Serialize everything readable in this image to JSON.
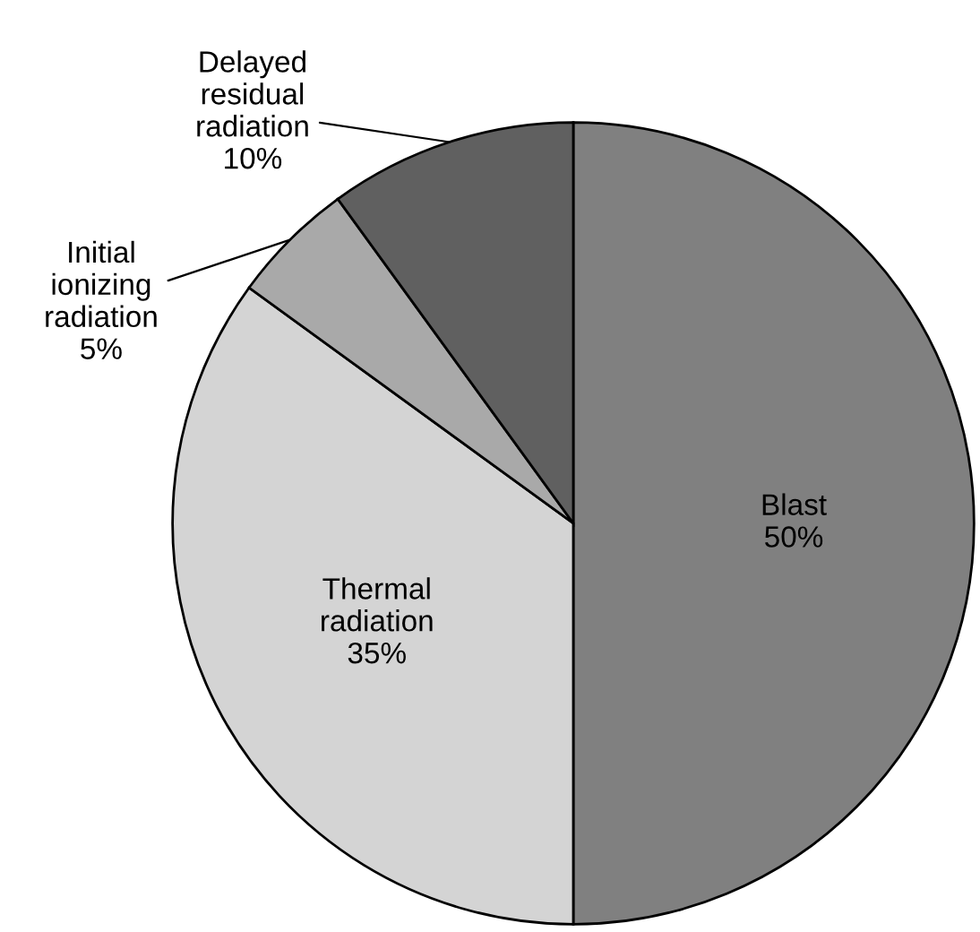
{
  "chart_data": {
    "type": "pie",
    "categories": [
      "Blast",
      "Thermal\nradiation",
      "Initial\nionizing\nradiation",
      "Delayed\nresidual\nradiation"
    ],
    "values": [
      50,
      35,
      5,
      10
    ],
    "value_labels": [
      "50%",
      "35%",
      "5%",
      "10%"
    ],
    "colors": [
      "#808080",
      "#d4d4d4",
      "#a9a9a9",
      "#606060"
    ],
    "legend": false
  }
}
